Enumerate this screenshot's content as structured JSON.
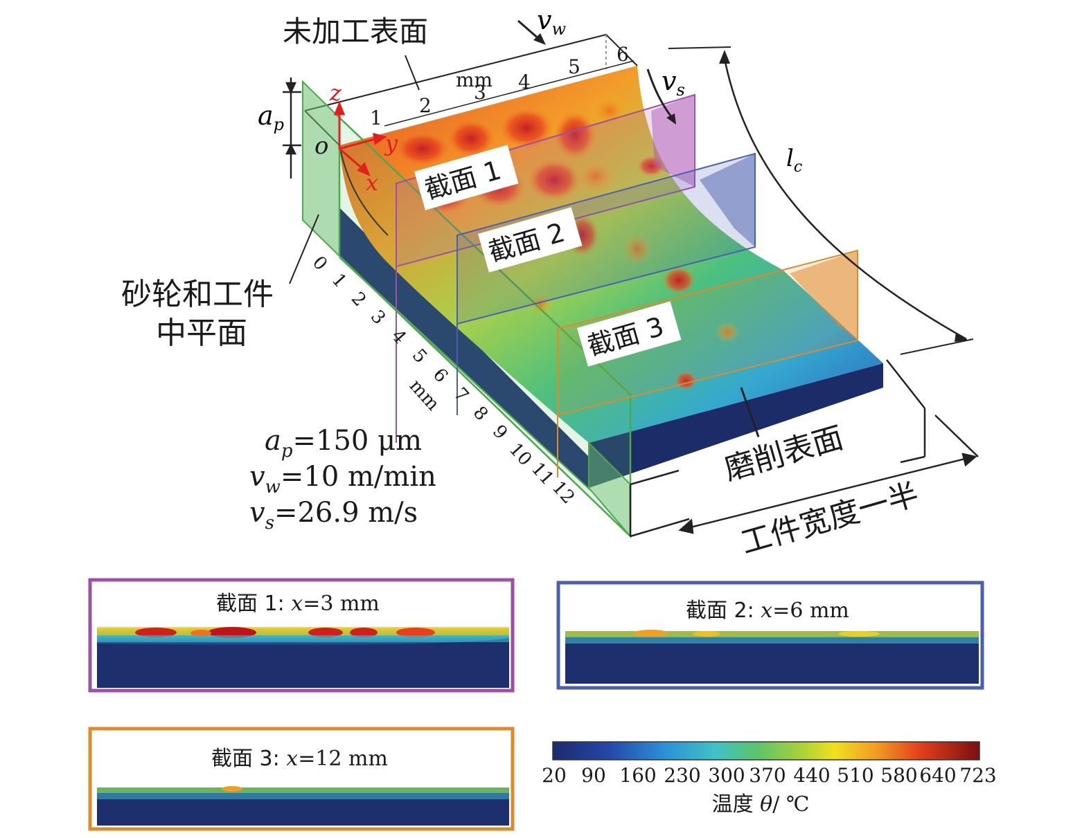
{
  "top": {
    "unmachined_surface": "未加工表面",
    "ground_surface": "磨削表面",
    "mid_plane_line1": "砂轮和工件",
    "mid_plane_line2": "中平面",
    "half_width": "工件宽度一半",
    "vw_symbol": "v",
    "vw_sub": "w",
    "vs_symbol": "v",
    "vs_sub": "s",
    "lc_symbol": "l",
    "lc_sub": "c",
    "ap_symbol": "a",
    "ap_sub": "p",
    "axis_z": "z",
    "axis_y": "y",
    "axis_x": "x",
    "axis_o": "o",
    "section_labels": [
      "截面 1",
      "截面 2",
      "截面 3"
    ],
    "y_scale_ticks": [
      "1",
      "2",
      "3",
      "4",
      "5",
      "6"
    ],
    "y_scale_unit": "mm",
    "x_scale_ticks": [
      "0",
      "1",
      "2",
      "3",
      "4",
      "5",
      "6",
      "7",
      "8",
      "9",
      "10",
      "11",
      "12"
    ],
    "x_scale_unit": "mm"
  },
  "params": [
    {
      "symbol": "a",
      "sub": "p",
      "value": "=150 μm"
    },
    {
      "symbol": "v",
      "sub": "w",
      "value": "=10 m/min"
    },
    {
      "symbol": "v",
      "sub": "s",
      "value": "=26.9 m/s"
    }
  ],
  "panels": [
    {
      "title_prefix": "截面 1: ",
      "var": "x",
      "title_suffix": "=3 mm",
      "color": "#a04fa8"
    },
    {
      "title_prefix": "截面 2: ",
      "var": "x",
      "title_suffix": "=6 mm",
      "color": "#4a5fb0"
    },
    {
      "title_prefix": "截面 3: ",
      "var": "x",
      "title_suffix": "=12 mm",
      "color": "#e08a2a"
    }
  ],
  "colorbar": {
    "ticks": [
      "20",
      "90",
      "160",
      "230",
      "300",
      "370",
      "440",
      "510",
      "580",
      "640",
      "723"
    ],
    "label_prefix": "温度 ",
    "label_var": "θ",
    "label_suffix": "/ ℃"
  },
  "colors": {
    "section1": "#a04fa8",
    "section2": "#4a5fb0",
    "section3": "#e08a2a",
    "midplane": "#5cb85c",
    "axis_red": "#e0201a",
    "cold": "#1c2f6e",
    "hot": "#c0121a"
  }
}
